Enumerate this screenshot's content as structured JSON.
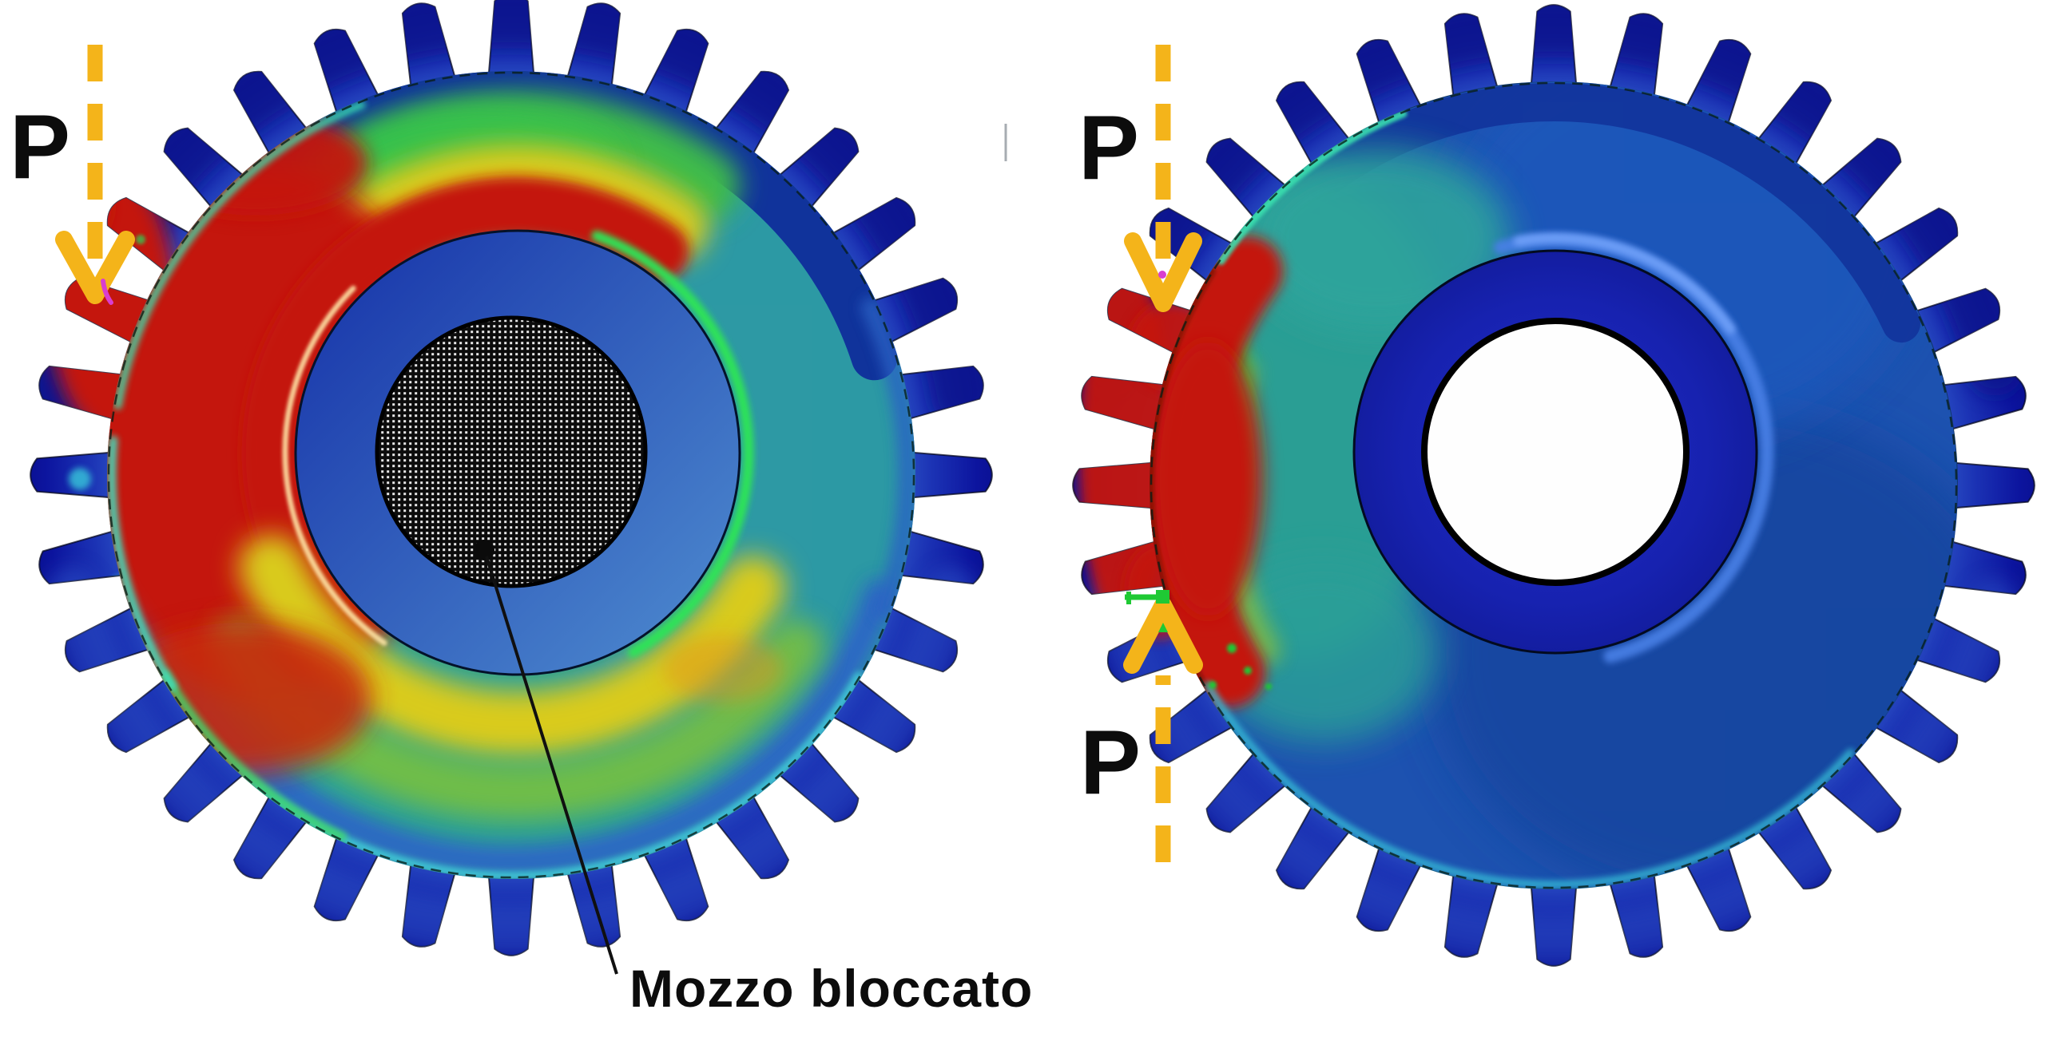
{
  "diagram": {
    "background_color": "#FFFFFF",
    "left_gear": {
      "teeth": 32,
      "load": {
        "label": "P",
        "direction": "down"
      },
      "hub": {
        "style": "hatched-locked",
        "callout": "Mozzo bloccato"
      }
    },
    "right_gear": {
      "teeth": 32,
      "load_top": {
        "label": "P",
        "direction": "down"
      },
      "load_bottom": {
        "label": "P",
        "direction": "up"
      },
      "hub": {
        "style": "open-bore"
      }
    },
    "colors": {
      "arrow_amber": "#F4B41A",
      "stress_red": "#C41408",
      "stress_dark_red": "#8A0E05",
      "stress_orange": "#E0951C",
      "stress_yellow": "#D9CB1A",
      "stress_yellow_green": "#9EC628",
      "stress_green": "#3CBA4C",
      "stress_teal": "#2BA198",
      "stress_cyan": "#45D2DC",
      "body_blue_right": "#1D52B0",
      "rim_navy": "#10339B",
      "teeth_navy": "#0A128C",
      "teeth_blue": "#2E55C8",
      "hub_blue_left": "#1B3AAC",
      "hub_blue_left_light": "#4C88CE",
      "hub_blue_right": "#1722B0",
      "halo_blue": "#4A80E6",
      "support_green": "#1FC934",
      "tick_magenta": "#D93ECF",
      "divider_gray": "#A7ACB2",
      "outline_black": "#000000"
    }
  }
}
